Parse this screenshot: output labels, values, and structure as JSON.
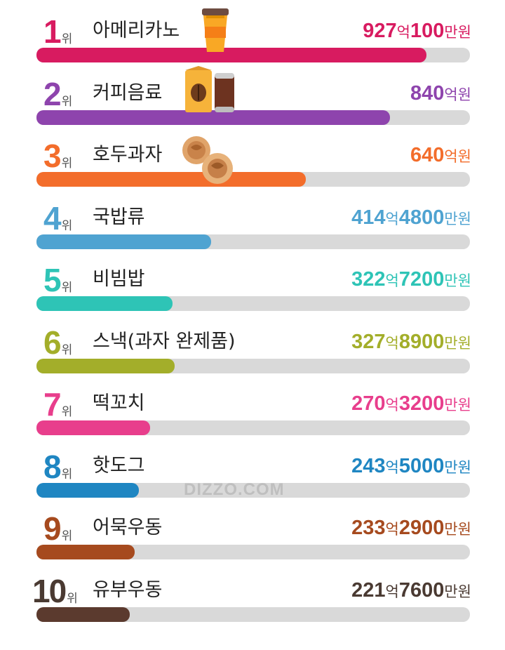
{
  "chart_data": {
    "type": "bar",
    "orientation": "horizontal",
    "rank_suffix": "위",
    "unit_eok": "억",
    "unit_man": "만",
    "unit_won": "원",
    "xlim": [
      0,
      1030
    ],
    "grid": false,
    "categories": [
      "아메리카노",
      "커피음료",
      "호두과자",
      "국밥류",
      "비빔밥",
      "스낵(과자 완제품)",
      "떡꼬치",
      "핫도그",
      "어묵우동",
      "유부우동"
    ],
    "values": [
      927.01,
      840,
      640,
      414.48,
      322.72,
      327.89,
      270.32,
      243.5,
      233.29,
      221.76
    ],
    "labels": [
      {
        "eok": "927",
        "man": "100"
      },
      {
        "eok": "840",
        "man": ""
      },
      {
        "eok": "640",
        "man": ""
      },
      {
        "eok": "414",
        "man": "4800"
      },
      {
        "eok": "322",
        "man": "7200"
      },
      {
        "eok": "327",
        "man": "8900"
      },
      {
        "eok": "270",
        "man": "3200"
      },
      {
        "eok": "243",
        "man": "5000"
      },
      {
        "eok": "233",
        "man": "2900"
      },
      {
        "eok": "221",
        "man": "7600"
      }
    ],
    "colors": [
      "#d81b60",
      "#8e44ad",
      "#f36d2b",
      "#4fa3d1",
      "#2ec4b6",
      "#a3ae2a",
      "#e83e8c",
      "#1f86c2",
      "#a64a1e",
      "#5b3a2e"
    ],
    "text_colors": [
      "#d81b60",
      "#8e44ad",
      "#f36d2b",
      "#4fa3d1",
      "#2ec4b6",
      "#a3ae2a",
      "#e83e8c",
      "#1f86c2",
      "#a64a1e",
      "#4a3a32"
    ]
  },
  "watermark": "DIZZO.COM",
  "illustrations": [
    "coffee-cup-icon",
    "coffee-drinks-icon",
    "walnut-cakes-icon"
  ]
}
